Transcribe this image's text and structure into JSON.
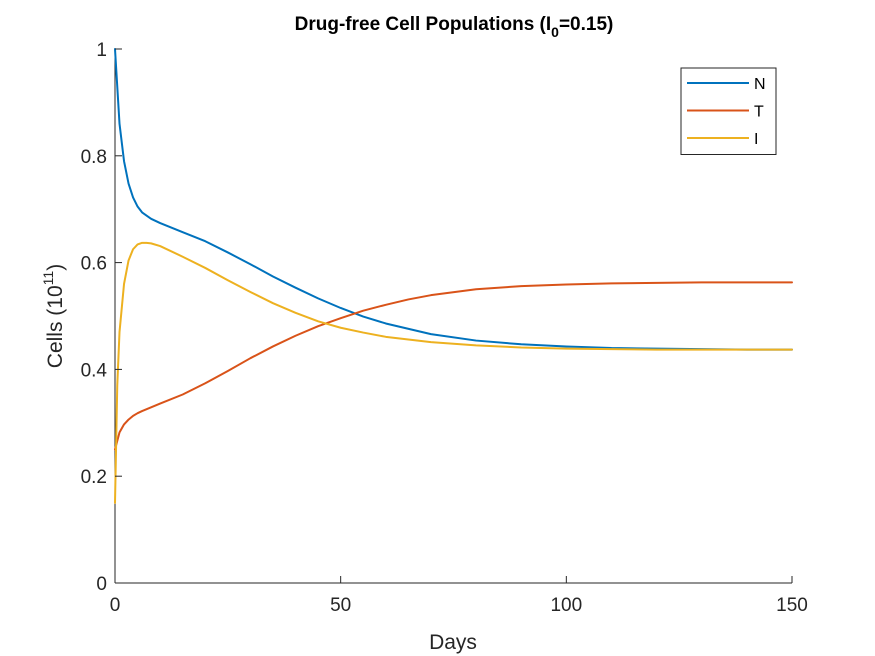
{
  "chart_data": {
    "type": "line",
    "title_main": "Drug-free Cell Populations (I",
    "title_sub": "0",
    "title_end": "=0.15)",
    "xlabel": "Days",
    "ylabel_main": "Cells (10",
    "ylabel_sup": "11",
    "ylabel_end": ")",
    "xlim": [
      0,
      150
    ],
    "ylim": [
      0,
      1
    ],
    "xticks": [
      0,
      50,
      100,
      150
    ],
    "xtick_labels": [
      "0",
      "50",
      "100",
      "150"
    ],
    "yticks": [
      0,
      0.2,
      0.4,
      0.6,
      0.8,
      1
    ],
    "ytick_labels": [
      "0",
      "0.2",
      "0.4",
      "0.6",
      "0.8",
      "1"
    ],
    "grid": false,
    "legend_position": "top-right",
    "series": [
      {
        "name": "N",
        "color": "#0072BD",
        "x": [
          0,
          1,
          2,
          3,
          4,
          5,
          6,
          8,
          10,
          15,
          20,
          25,
          30,
          35,
          40,
          45,
          50,
          55,
          60,
          70,
          80,
          90,
          100,
          110,
          120,
          130,
          140,
          150
        ],
        "y": [
          1.0,
          0.86,
          0.79,
          0.748,
          0.722,
          0.705,
          0.694,
          0.682,
          0.674,
          0.657,
          0.64,
          0.619,
          0.597,
          0.574,
          0.553,
          0.533,
          0.515,
          0.499,
          0.486,
          0.466,
          0.454,
          0.447,
          0.443,
          0.44,
          0.439,
          0.438,
          0.437,
          0.437
        ]
      },
      {
        "name": "T",
        "color": "#D95319",
        "x": [
          0,
          1,
          2,
          3,
          4,
          5,
          6,
          8,
          10,
          15,
          20,
          25,
          30,
          35,
          40,
          45,
          50,
          55,
          60,
          65,
          70,
          80,
          90,
          100,
          110,
          120,
          130,
          140,
          150
        ],
        "y": [
          0.25,
          0.282,
          0.297,
          0.306,
          0.313,
          0.318,
          0.322,
          0.329,
          0.336,
          0.353,
          0.374,
          0.397,
          0.421,
          0.443,
          0.463,
          0.481,
          0.496,
          0.51,
          0.521,
          0.531,
          0.539,
          0.55,
          0.556,
          0.559,
          0.561,
          0.562,
          0.563,
          0.563,
          0.563
        ]
      },
      {
        "name": "I",
        "color": "#EDB120",
        "x": [
          0,
          0.5,
          1,
          2,
          3,
          4,
          5,
          6,
          7,
          8,
          10,
          15,
          20,
          25,
          30,
          35,
          40,
          45,
          50,
          55,
          60,
          70,
          80,
          90,
          100,
          110,
          120,
          130,
          140,
          150
        ],
        "y": [
          0.15,
          0.37,
          0.47,
          0.56,
          0.604,
          0.625,
          0.634,
          0.637,
          0.637,
          0.636,
          0.631,
          0.611,
          0.59,
          0.567,
          0.545,
          0.524,
          0.506,
          0.49,
          0.478,
          0.469,
          0.461,
          0.451,
          0.445,
          0.441,
          0.439,
          0.438,
          0.437,
          0.437,
          0.437,
          0.437
        ]
      }
    ]
  }
}
